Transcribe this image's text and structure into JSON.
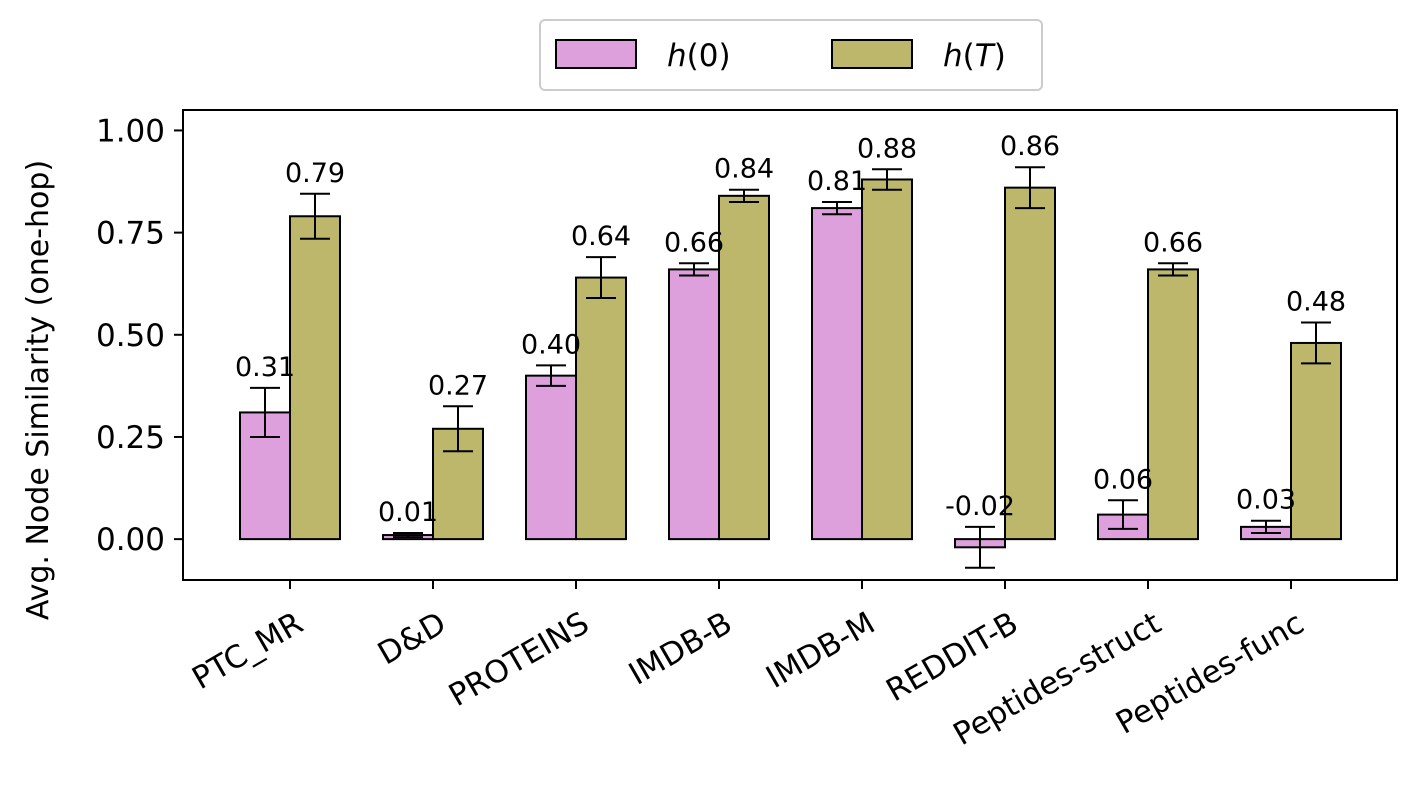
{
  "chart_data": {
    "type": "bar",
    "title": "",
    "xlabel": "",
    "ylabel": "Avg. Node Similarity (one-hop)",
    "ylim": [
      -0.1,
      1.05
    ],
    "yticks": [
      0.0,
      0.25,
      0.5,
      0.75,
      1.0
    ],
    "ytick_labels": [
      "0.00",
      "0.25",
      "0.50",
      "0.75",
      "1.00"
    ],
    "grid": false,
    "legend_position": "top-center",
    "categories": [
      "PTC_MR",
      "D&D",
      "PROTEINS",
      "IMDB-B",
      "IMDB-M",
      "REDDIT-B",
      "Peptides-struct",
      "Peptides-func"
    ],
    "series": [
      {
        "name": "h(0)",
        "legend_main": "h",
        "legend_arg": "0",
        "color": "#dda0dd",
        "values": [
          0.31,
          0.01,
          0.4,
          0.66,
          0.81,
          -0.02,
          0.06,
          0.03
        ],
        "errors": [
          0.06,
          0.005,
          0.025,
          0.015,
          0.015,
          0.05,
          0.035,
          0.015
        ],
        "labels": [
          "0.31",
          "0.01",
          "0.40",
          "0.66",
          "0.81",
          "-0.02",
          "0.06",
          "0.03"
        ]
      },
      {
        "name": "h(T)",
        "legend_main": "h",
        "legend_arg": "T",
        "color": "#bdb76b",
        "values": [
          0.79,
          0.27,
          0.64,
          0.84,
          0.88,
          0.86,
          0.66,
          0.48
        ],
        "errors": [
          0.055,
          0.055,
          0.05,
          0.015,
          0.025,
          0.05,
          0.015,
          0.05
        ],
        "labels": [
          "0.79",
          "0.27",
          "0.64",
          "0.84",
          "0.88",
          "0.86",
          "0.66",
          "0.48"
        ]
      }
    ]
  }
}
